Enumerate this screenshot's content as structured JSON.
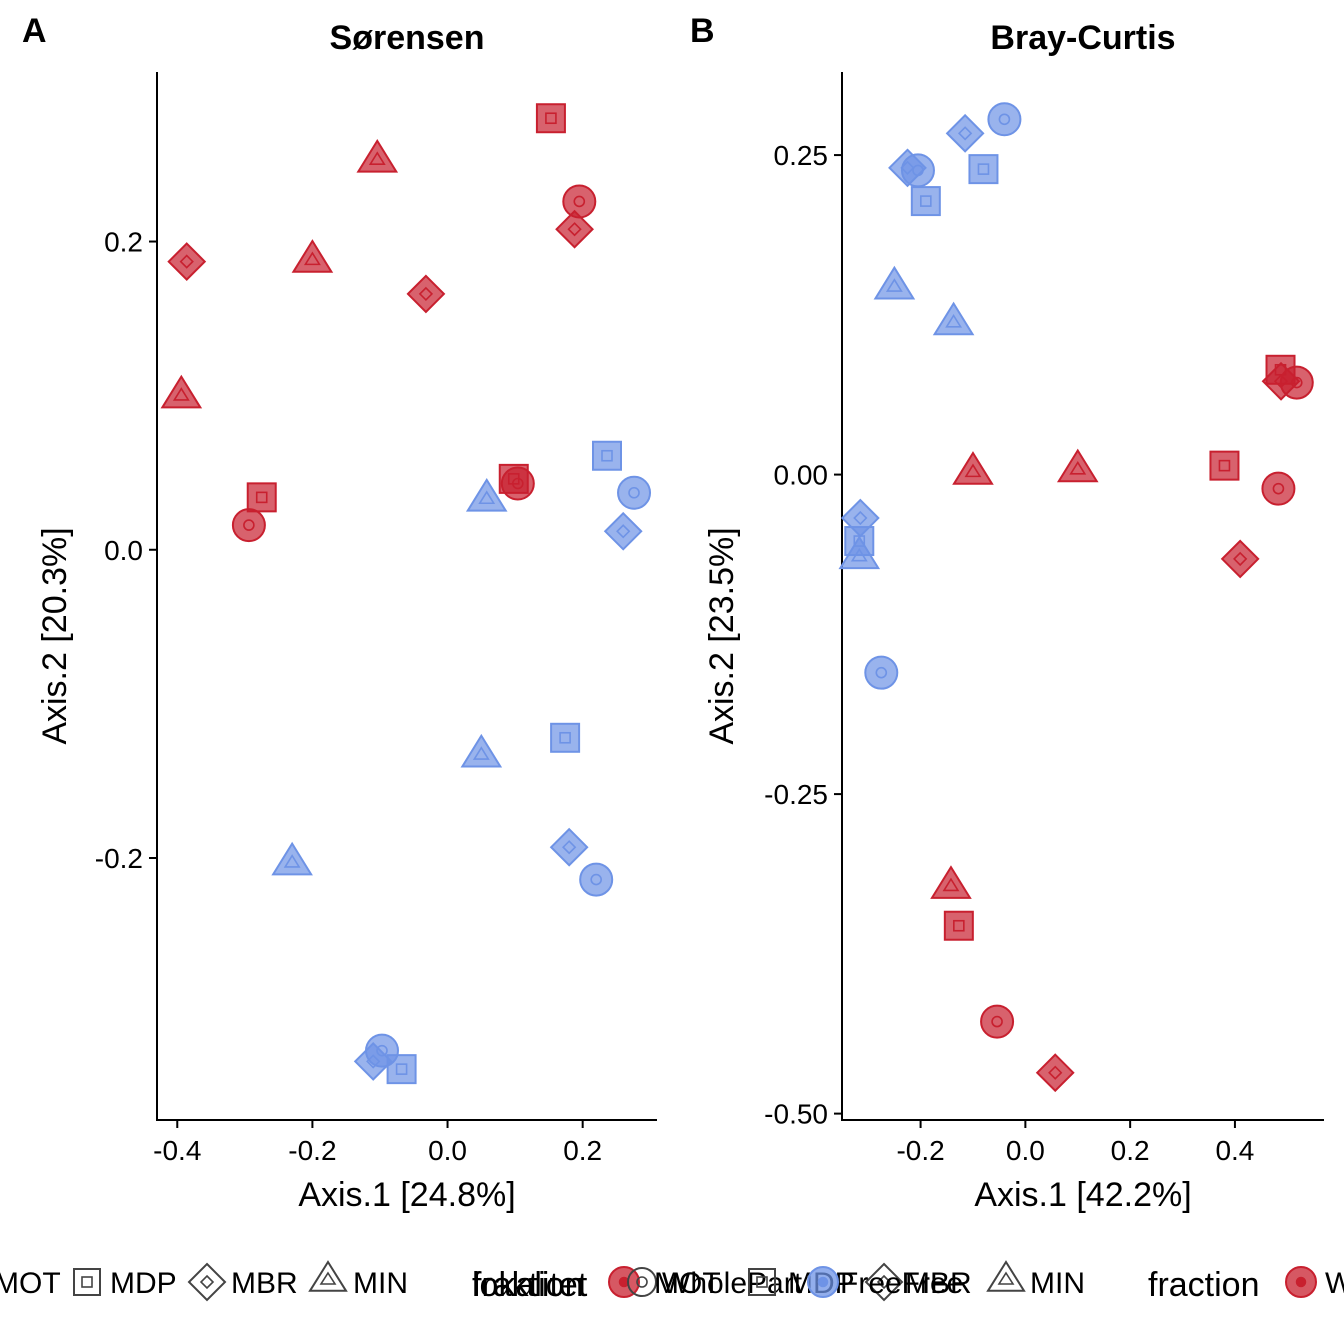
{
  "colors": {
    "Whole": "#c8202f",
    "Free": "#6e93e6"
  },
  "chart_data": [
    {
      "type": "scatter",
      "tag": "A",
      "title": "Sørensen",
      "xlabel": "Axis.1   [24.8%]",
      "ylabel": "Axis.2   [20.3%]",
      "xlim": [
        -0.43,
        0.31
      ],
      "ylim": [
        -0.37,
        0.31
      ],
      "xticks": [
        -0.4,
        -0.2,
        0.0,
        0.2
      ],
      "xtick_labels": [
        "-0.4",
        "-0.2",
        "0.0",
        "0.2"
      ],
      "yticks": [
        -0.2,
        0.0,
        0.2
      ],
      "ytick_labels": [
        "-0.2",
        "0.0",
        "0.2"
      ],
      "points": [
        {
          "x": 0.153,
          "y": 0.28,
          "site": "MDP",
          "fraction": "Whole"
        },
        {
          "x": -0.104,
          "y": 0.253,
          "site": "MIN",
          "fraction": "Whole"
        },
        {
          "x": 0.195,
          "y": 0.226,
          "site": "MOT",
          "fraction": "Whole"
        },
        {
          "x": 0.188,
          "y": 0.208,
          "site": "MBR",
          "fraction": "Whole"
        },
        {
          "x": -0.2,
          "y": 0.188,
          "site": "MIN",
          "fraction": "Whole"
        },
        {
          "x": -0.386,
          "y": 0.187,
          "site": "MBR",
          "fraction": "Whole"
        },
        {
          "x": -0.032,
          "y": 0.166,
          "site": "MBR",
          "fraction": "Whole"
        },
        {
          "x": -0.394,
          "y": 0.1,
          "site": "MIN",
          "fraction": "Whole"
        },
        {
          "x": 0.098,
          "y": 0.046,
          "site": "MDP",
          "fraction": "Whole"
        },
        {
          "x": 0.104,
          "y": 0.043,
          "site": "MOT",
          "fraction": "Whole"
        },
        {
          "x": -0.275,
          "y": 0.034,
          "site": "MDP",
          "fraction": "Whole"
        },
        {
          "x": -0.294,
          "y": 0.016,
          "site": "MOT",
          "fraction": "Whole"
        },
        {
          "x": 0.236,
          "y": 0.061,
          "site": "MDP",
          "fraction": "Free"
        },
        {
          "x": 0.276,
          "y": 0.037,
          "site": "MOT",
          "fraction": "Free"
        },
        {
          "x": 0.058,
          "y": 0.033,
          "site": "MIN",
          "fraction": "Free"
        },
        {
          "x": 0.26,
          "y": 0.012,
          "site": "MBR",
          "fraction": "Free"
        },
        {
          "x": 0.174,
          "y": -0.122,
          "site": "MDP",
          "fraction": "Free"
        },
        {
          "x": 0.05,
          "y": -0.133,
          "site": "MIN",
          "fraction": "Free"
        },
        {
          "x": 0.18,
          "y": -0.193,
          "site": "MBR",
          "fraction": "Free"
        },
        {
          "x": -0.23,
          "y": -0.203,
          "site": "MIN",
          "fraction": "Free"
        },
        {
          "x": 0.22,
          "y": -0.214,
          "site": "MOT",
          "fraction": "Free"
        },
        {
          "x": -0.097,
          "y": -0.325,
          "site": "MOT",
          "fraction": "Free"
        },
        {
          "x": -0.11,
          "y": -0.332,
          "site": "MBR",
          "fraction": "Free"
        },
        {
          "x": -0.068,
          "y": -0.337,
          "site": "MDP",
          "fraction": "Free"
        }
      ]
    },
    {
      "type": "scatter",
      "tag": "B",
      "title": "Bray-Curtis",
      "xlabel": "Axis.1   [42.2%]",
      "ylabel": "Axis.2   [23.5%]",
      "xlim": [
        -0.35,
        0.57
      ],
      "ylim": [
        -0.505,
        0.315
      ],
      "xticks": [
        -0.2,
        0.0,
        0.2,
        0.4
      ],
      "xtick_labels": [
        "-0.2",
        "0.0",
        "0.2",
        "0.4"
      ],
      "yticks": [
        -0.5,
        -0.25,
        0.0,
        0.25
      ],
      "ytick_labels": [
        "-0.50",
        "-0.25",
        "0.00",
        "0.25"
      ],
      "points": [
        {
          "x": -0.04,
          "y": 0.278,
          "site": "MOT",
          "fraction": "Free"
        },
        {
          "x": -0.115,
          "y": 0.267,
          "site": "MBR",
          "fraction": "Free"
        },
        {
          "x": -0.225,
          "y": 0.24,
          "site": "MBR",
          "fraction": "Free"
        },
        {
          "x": -0.205,
          "y": 0.238,
          "site": "MOT",
          "fraction": "Free"
        },
        {
          "x": -0.08,
          "y": 0.239,
          "site": "MDP",
          "fraction": "Free"
        },
        {
          "x": -0.19,
          "y": 0.214,
          "site": "MDP",
          "fraction": "Free"
        },
        {
          "x": -0.25,
          "y": 0.147,
          "site": "MIN",
          "fraction": "Free"
        },
        {
          "x": -0.137,
          "y": 0.119,
          "site": "MIN",
          "fraction": "Free"
        },
        {
          "x": -0.315,
          "y": -0.034,
          "site": "MBR",
          "fraction": "Free"
        },
        {
          "x": -0.317,
          "y": -0.052,
          "site": "MDP",
          "fraction": "Free"
        },
        {
          "x": -0.317,
          "y": -0.064,
          "site": "MIN",
          "fraction": "Free"
        },
        {
          "x": -0.275,
          "y": -0.155,
          "site": "MOT",
          "fraction": "Free"
        },
        {
          "x": 0.487,
          "y": 0.082,
          "site": "MDP",
          "fraction": "Whole"
        },
        {
          "x": 0.488,
          "y": 0.073,
          "site": "MBR",
          "fraction": "Whole"
        },
        {
          "x": 0.518,
          "y": 0.072,
          "site": "MOT",
          "fraction": "Whole"
        },
        {
          "x": -0.1,
          "y": 0.002,
          "site": "MIN",
          "fraction": "Whole"
        },
        {
          "x": 0.1,
          "y": 0.004,
          "site": "MIN",
          "fraction": "Whole"
        },
        {
          "x": 0.38,
          "y": 0.007,
          "site": "MDP",
          "fraction": "Whole"
        },
        {
          "x": 0.483,
          "y": -0.011,
          "site": "MOT",
          "fraction": "Whole"
        },
        {
          "x": 0.41,
          "y": -0.066,
          "site": "MBR",
          "fraction": "Whole"
        },
        {
          "x": -0.142,
          "y": -0.322,
          "site": "MIN",
          "fraction": "Whole"
        },
        {
          "x": -0.127,
          "y": -0.353,
          "site": "MDP",
          "fraction": "Whole"
        },
        {
          "x": -0.054,
          "y": -0.428,
          "site": "MOT",
          "fraction": "Whole"
        },
        {
          "x": 0.057,
          "y": -0.468,
          "site": "MBR",
          "fraction": "Whole"
        }
      ]
    }
  ],
  "legend": {
    "site_title": "lokalitet",
    "sites": [
      "MOT",
      "MDP",
      "MBR",
      "MIN"
    ],
    "fraction_title": "fraction",
    "fractions": [
      "Whole",
      "Free"
    ],
    "overlap_fraction_title": "fraktion",
    "overlap_fraction_labels": [
      "WholePart",
      "FreeFree"
    ]
  }
}
